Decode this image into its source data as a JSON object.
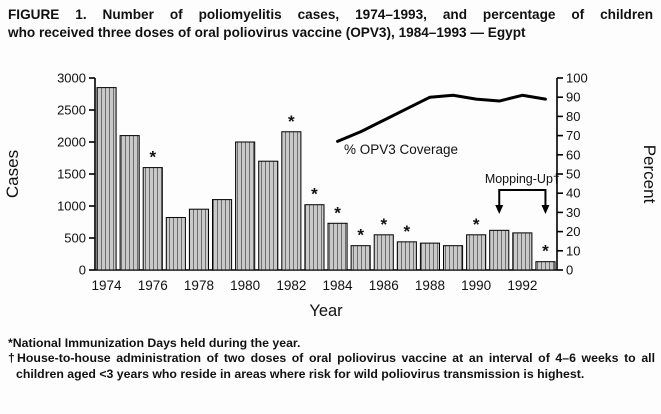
{
  "title": {
    "line1": "FIGURE 1. Number of poliomyelitis cases, 1974–1993, and percentage of children",
    "line2": "who received three doses of oral poliovirus vaccine (OPV3), 1984–1993 — Egypt"
  },
  "chart_data": {
    "type": "bar",
    "title": "Number of poliomyelitis cases, 1974–1993, and % OPV3 coverage, 1984–1993, Egypt",
    "categories": [
      1974,
      1975,
      1976,
      1977,
      1978,
      1979,
      1980,
      1981,
      1982,
      1983,
      1984,
      1985,
      1986,
      1987,
      1988,
      1989,
      1990,
      1991,
      1992,
      1993
    ],
    "series": [
      {
        "name": "Cases",
        "type": "bar",
        "axis": "left",
        "values": [
          2850,
          2100,
          1600,
          820,
          950,
          1100,
          2000,
          1700,
          2160,
          1020,
          730,
          380,
          550,
          440,
          420,
          380,
          550,
          620,
          580,
          130
        ]
      },
      {
        "name": "% OPV3 Coverage",
        "type": "line",
        "axis": "right",
        "x": [
          1984,
          1985,
          1986,
          1987,
          1988,
          1989,
          1990,
          1991,
          1992,
          1993
        ],
        "values": [
          67,
          72,
          78,
          84,
          90,
          91,
          89,
          88,
          91,
          89
        ]
      }
    ],
    "left_axis": {
      "label": "Cases",
      "min": 0,
      "max": 3000,
      "ticks": [
        0,
        500,
        1000,
        1500,
        2000,
        2500,
        3000
      ]
    },
    "right_axis": {
      "label": "Percent",
      "min": 0,
      "max": 100,
      "ticks": [
        0,
        10,
        20,
        30,
        40,
        50,
        60,
        70,
        80,
        90,
        100
      ]
    },
    "xlabel": "Year",
    "x_tick_labels": [
      "1974",
      "1976",
      "1978",
      "1980",
      "1982",
      "1984",
      "1986",
      "1988",
      "1990",
      "1992"
    ],
    "asterisk_years": [
      1976,
      1982,
      1983,
      1984,
      1985,
      1986,
      1987,
      1990,
      1993
    ],
    "asterisk_symbol": "*",
    "annotations": {
      "line_label": "% OPV3 Coverage",
      "mopping_label": "Mopping-Up†",
      "mopping_span": [
        1991,
        1993
      ]
    },
    "style": {
      "bar_fill": "#c9c9c9",
      "bar_hatch": "#6e6e6e",
      "line_color": "#000000",
      "axis_color": "#000000"
    }
  },
  "footnotes": {
    "nid": "*National Immunization Days held during the year.",
    "mopping": "†House-to-house administration of two doses of oral poliovirus vaccine at an interval of 4–6 weeks to all children aged <3 years who reside in areas where risk for wild poliovirus transmission is highest."
  }
}
